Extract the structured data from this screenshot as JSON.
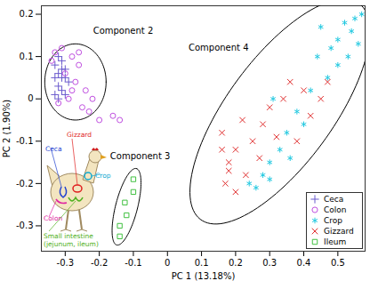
{
  "chart_data": {
    "type": "scatter",
    "xlabel": "PC 1 (13.18%)",
    "ylabel": "PC 2 (1.90%)",
    "xlim": [
      -0.37,
      0.58
    ],
    "ylim": [
      -0.36,
      0.22
    ],
    "xticks": [
      -0.3,
      -0.2,
      -0.1,
      0,
      0.1,
      0.2,
      0.3,
      0.4,
      0.5
    ],
    "yticks": [
      -0.3,
      -0.2,
      -0.1,
      0,
      0.1,
      0.2
    ],
    "grid": false,
    "legend": "bottom-right",
    "series": [
      {
        "name": "Ceca",
        "color": "#6a5acd",
        "marker": "plus",
        "x": [
          -0.33,
          -0.32,
          -0.31,
          -0.32,
          -0.3,
          -0.31,
          -0.33,
          -0.3,
          -0.32,
          -0.29,
          -0.31,
          -0.33,
          -0.3,
          -0.31,
          -0.32
        ],
        "y": [
          0.08,
          0.06,
          0.09,
          0.03,
          0.05,
          0.02,
          0.01,
          0.07,
          0.1,
          0.04,
          0.05,
          0.05,
          0.01,
          0.07,
          0.0
        ]
      },
      {
        "name": "Colon",
        "color": "#c050e0",
        "marker": "circle",
        "x": [
          -0.34,
          -0.33,
          -0.31,
          -0.28,
          -0.3,
          -0.26,
          -0.27,
          -0.29,
          -0.24,
          -0.22,
          -0.25,
          -0.23,
          -0.2,
          -0.16,
          -0.14,
          -0.28,
          -0.32,
          -0.26
        ],
        "y": [
          0.09,
          0.11,
          0.12,
          0.1,
          0.06,
          0.08,
          0.04,
          0.0,
          0.02,
          0.0,
          -0.02,
          -0.03,
          -0.05,
          -0.04,
          -0.05,
          0.02,
          -0.01,
          0.11
        ]
      },
      {
        "name": "Crop",
        "color": "#20c8e0",
        "marker": "asterisk",
        "x": [
          0.45,
          0.48,
          0.5,
          0.52,
          0.54,
          0.55,
          0.56,
          0.57,
          0.53,
          0.5,
          0.47,
          0.44,
          0.42,
          0.38,
          0.35,
          0.33,
          0.3,
          0.28,
          0.26,
          0.3,
          0.24,
          0.4,
          0.36,
          0.31
        ],
        "y": [
          0.17,
          0.12,
          0.14,
          0.18,
          0.16,
          0.19,
          0.13,
          0.2,
          0.1,
          0.08,
          0.05,
          0.1,
          0.02,
          -0.03,
          -0.08,
          -0.12,
          -0.15,
          -0.18,
          -0.21,
          -0.19,
          -0.2,
          -0.06,
          -0.14,
          0.0
        ]
      },
      {
        "name": "Gizzard",
        "color": "#e03030",
        "marker": "times",
        "x": [
          0.16,
          0.18,
          0.16,
          0.18,
          0.2,
          0.22,
          0.23,
          0.25,
          0.27,
          0.28,
          0.3,
          0.32,
          0.34,
          0.36,
          0.38,
          0.4,
          0.42,
          0.45,
          0.47,
          0.17,
          0.2
        ],
        "y": [
          -0.12,
          -0.15,
          -0.08,
          -0.17,
          -0.12,
          -0.05,
          -0.18,
          -0.1,
          -0.14,
          -0.06,
          -0.02,
          -0.09,
          0.0,
          0.04,
          -0.1,
          0.02,
          -0.04,
          0.0,
          0.04,
          -0.2,
          -0.22
        ]
      },
      {
        "name": "Ileum",
        "color": "#40c040",
        "marker": "square",
        "x": [
          -0.1,
          -0.1,
          -0.125,
          -0.12,
          -0.14,
          -0.14
        ],
        "y": [
          -0.19,
          -0.22,
          -0.245,
          -0.275,
          -0.3,
          -0.325
        ]
      }
    ],
    "annotations": [
      {
        "text": "Component 2",
        "x": -0.13,
        "y": 0.16,
        "ellipse": {
          "center": [
            -0.27,
            0.04
          ],
          "u": [
            0.09,
            0
          ],
          "v": [
            0,
            0.09
          ]
        }
      },
      {
        "text": "Component 3",
        "x": -0.08,
        "y": -0.135,
        "ellipse": {
          "center": [
            -0.12,
            -0.255
          ],
          "u": [
            0.03,
            0.09
          ],
          "v": [
            0.03,
            -0.01
          ]
        }
      },
      {
        "text": "Component 4",
        "x": 0.15,
        "y": 0.12,
        "ellipse": {
          "center": [
            0.33,
            -0.03
          ],
          "u": [
            0.24,
            0.25
          ],
          "v": [
            0.11,
            -0.09
          ]
        }
      }
    ],
    "illustration": {
      "labels": [
        {
          "text": "Ceca",
          "color": "#2040d0"
        },
        {
          "text": "Gizzard",
          "color": "#e02020"
        },
        {
          "text": "Crop",
          "color": "#10a8d0"
        },
        {
          "text": "Colon",
          "color": "#e020a0"
        },
        {
          "text": "Small intestine\n(jejunum, ileum)",
          "color": "#50b020"
        }
      ]
    }
  }
}
